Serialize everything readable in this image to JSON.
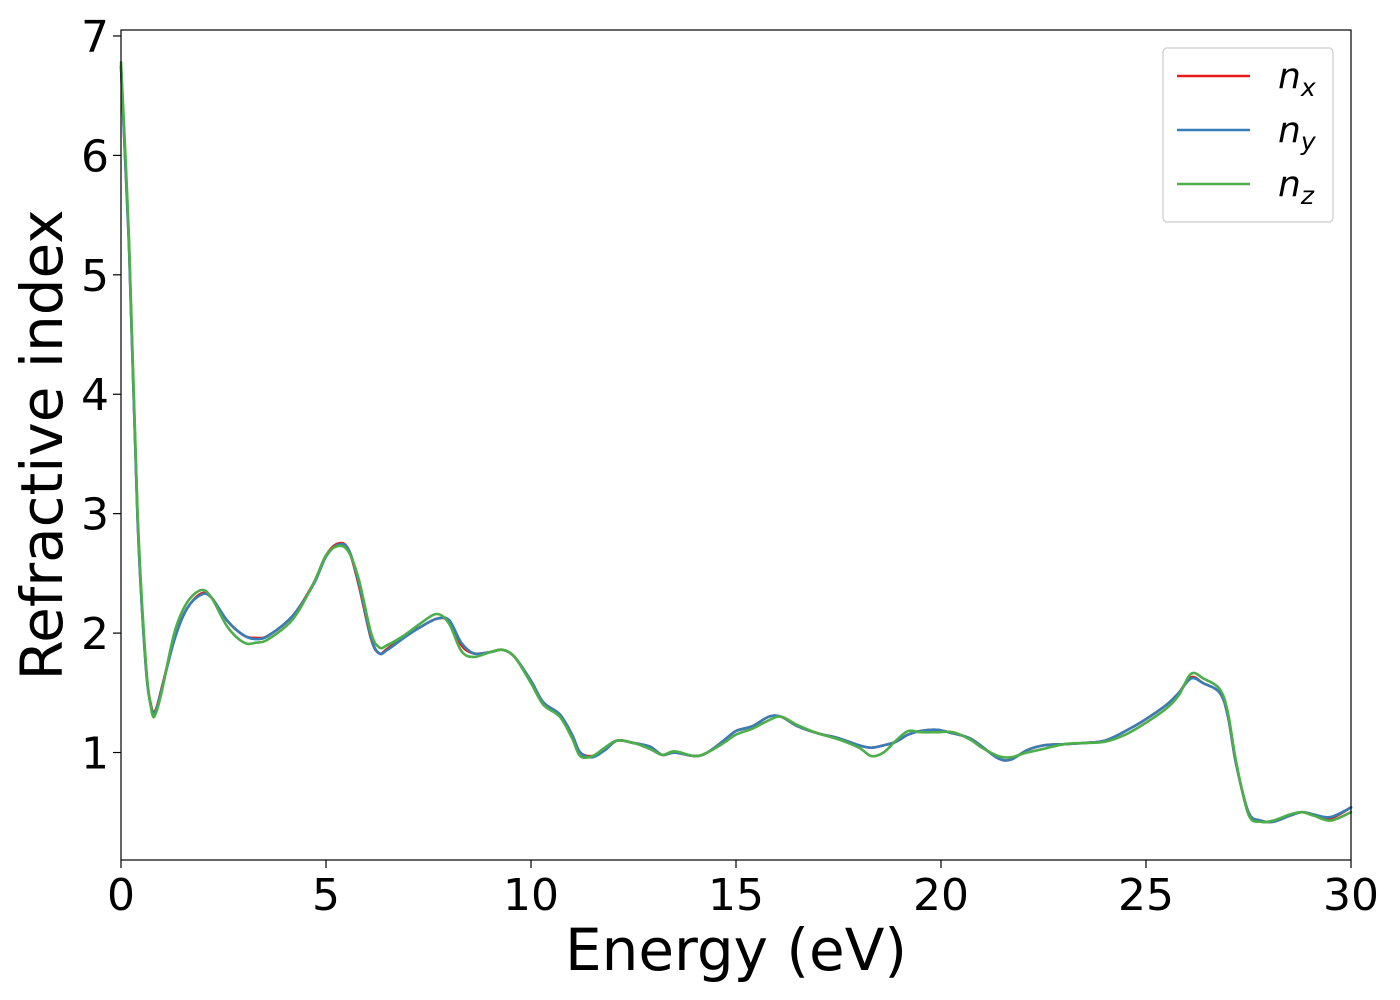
{
  "chart_data": {
    "type": "line",
    "title": "",
    "xlabel": "Energy (eV)",
    "ylabel": "Refractive index",
    "xlim": [
      0,
      30
    ],
    "ylim": [
      0.1,
      7.05
    ],
    "xticks": [
      0,
      5,
      10,
      15,
      20,
      25,
      30
    ],
    "yticks": [
      1,
      2,
      3,
      4,
      5,
      6,
      7
    ],
    "grid": false,
    "legend_position": "top-right",
    "series": [
      {
        "name": "n",
        "subscript": "x",
        "color": "#e41a1c",
        "x": [
          0,
          0.2,
          0.4,
          0.6,
          0.75,
          0.85,
          1.0,
          1.3,
          1.6,
          1.95,
          2.2,
          2.6,
          3.0,
          3.3,
          3.6,
          4.2,
          4.7,
          5.0,
          5.3,
          5.55,
          5.8,
          6.1,
          6.3,
          6.5,
          6.9,
          7.3,
          7.7,
          8.0,
          8.3,
          8.6,
          9.0,
          9.3,
          9.6,
          10.0,
          10.3,
          10.7,
          11.0,
          11.2,
          11.5,
          11.8,
          12.1,
          12.5,
          12.9,
          13.2,
          13.5,
          14.0,
          14.3,
          14.7,
          15.0,
          15.4,
          15.8,
          16.1,
          16.5,
          17.0,
          17.5,
          18.0,
          18.3,
          18.6,
          18.9,
          19.2,
          19.5,
          19.9,
          20.3,
          20.7,
          21.0,
          21.4,
          21.7,
          22.1,
          22.5,
          23.0,
          23.5,
          24.0,
          24.5,
          25.0,
          25.5,
          25.8,
          26.1,
          26.4,
          26.8,
          27.0,
          27.2,
          27.5,
          27.8,
          28.1,
          28.5,
          28.8,
          29.1,
          29.5,
          30.0
        ],
        "values": [
          6.75,
          5.2,
          3.0,
          1.75,
          1.37,
          1.36,
          1.55,
          1.95,
          2.2,
          2.33,
          2.3,
          2.1,
          1.98,
          1.96,
          1.98,
          2.15,
          2.42,
          2.65,
          2.75,
          2.7,
          2.4,
          1.95,
          1.83,
          1.87,
          1.97,
          2.05,
          2.12,
          2.1,
          1.9,
          1.83,
          1.84,
          1.86,
          1.8,
          1.6,
          1.42,
          1.32,
          1.15,
          1.0,
          0.97,
          1.02,
          1.1,
          1.08,
          1.05,
          0.98,
          1.0,
          0.97,
          1.0,
          1.1,
          1.18,
          1.22,
          1.3,
          1.3,
          1.22,
          1.16,
          1.12,
          1.06,
          1.04,
          1.06,
          1.09,
          1.15,
          1.18,
          1.19,
          1.16,
          1.12,
          1.05,
          0.95,
          0.94,
          1.02,
          1.06,
          1.07,
          1.08,
          1.1,
          1.18,
          1.28,
          1.4,
          1.5,
          1.63,
          1.58,
          1.5,
          1.3,
          0.9,
          0.5,
          0.43,
          0.42,
          0.47,
          0.5,
          0.48,
          0.45,
          0.54
        ]
      },
      {
        "name": "n",
        "subscript": "y",
        "color": "#377eb8",
        "x": [
          0,
          0.2,
          0.4,
          0.6,
          0.75,
          0.85,
          1.0,
          1.3,
          1.6,
          1.95,
          2.2,
          2.6,
          3.0,
          3.3,
          3.6,
          4.2,
          4.7,
          5.0,
          5.3,
          5.55,
          5.8,
          6.1,
          6.3,
          6.5,
          6.9,
          7.3,
          7.7,
          8.0,
          8.3,
          8.6,
          9.0,
          9.3,
          9.6,
          10.0,
          10.3,
          10.7,
          11.0,
          11.2,
          11.5,
          11.8,
          12.1,
          12.5,
          12.9,
          13.2,
          13.5,
          14.0,
          14.3,
          14.7,
          15.0,
          15.4,
          15.8,
          16.1,
          16.5,
          17.0,
          17.5,
          18.0,
          18.3,
          18.6,
          18.9,
          19.2,
          19.5,
          19.9,
          20.3,
          20.7,
          21.0,
          21.4,
          21.7,
          22.1,
          22.5,
          23.0,
          23.5,
          24.0,
          24.5,
          25.0,
          25.5,
          25.8,
          26.1,
          26.4,
          26.8,
          27.0,
          27.2,
          27.5,
          27.8,
          28.1,
          28.5,
          28.8,
          29.1,
          29.5,
          30.0
        ],
        "values": [
          6.74,
          5.18,
          2.98,
          1.74,
          1.36,
          1.35,
          1.54,
          1.94,
          2.2,
          2.32,
          2.3,
          2.1,
          1.98,
          1.95,
          1.98,
          2.15,
          2.41,
          2.64,
          2.74,
          2.7,
          2.42,
          1.96,
          1.83,
          1.86,
          1.96,
          2.05,
          2.12,
          2.11,
          1.92,
          1.83,
          1.84,
          1.86,
          1.8,
          1.6,
          1.42,
          1.32,
          1.15,
          1.0,
          0.96,
          1.02,
          1.1,
          1.08,
          1.05,
          0.98,
          1.0,
          0.97,
          1.0,
          1.1,
          1.18,
          1.22,
          1.3,
          1.3,
          1.22,
          1.16,
          1.12,
          1.06,
          1.04,
          1.06,
          1.09,
          1.15,
          1.18,
          1.19,
          1.16,
          1.12,
          1.05,
          0.95,
          0.94,
          1.02,
          1.06,
          1.07,
          1.08,
          1.1,
          1.18,
          1.28,
          1.4,
          1.5,
          1.62,
          1.58,
          1.5,
          1.3,
          0.9,
          0.5,
          0.43,
          0.42,
          0.47,
          0.5,
          0.48,
          0.46,
          0.54
        ]
      },
      {
        "name": "n",
        "subscript": "z",
        "color": "#4daf4a",
        "x": [
          0,
          0.2,
          0.4,
          0.6,
          0.75,
          0.85,
          1.0,
          1.3,
          1.6,
          1.95,
          2.2,
          2.6,
          3.0,
          3.3,
          3.6,
          4.2,
          4.7,
          5.0,
          5.3,
          5.55,
          5.8,
          6.1,
          6.3,
          6.5,
          6.9,
          7.3,
          7.7,
          8.0,
          8.3,
          8.6,
          9.0,
          9.3,
          9.6,
          10.0,
          10.3,
          10.7,
          11.0,
          11.2,
          11.5,
          11.8,
          12.1,
          12.5,
          12.9,
          13.2,
          13.5,
          14.0,
          14.3,
          14.7,
          15.0,
          15.4,
          15.8,
          16.1,
          16.5,
          17.0,
          17.5,
          18.0,
          18.3,
          18.6,
          18.9,
          19.2,
          19.5,
          19.9,
          20.3,
          20.7,
          21.0,
          21.4,
          21.7,
          22.1,
          22.5,
          23.0,
          23.5,
          24.0,
          24.5,
          25.0,
          25.5,
          25.8,
          26.1,
          26.4,
          26.8,
          27.0,
          27.2,
          27.5,
          27.8,
          28.1,
          28.5,
          28.8,
          29.1,
          29.5,
          30.0
        ],
        "values": [
          6.78,
          5.25,
          3.05,
          1.78,
          1.34,
          1.33,
          1.52,
          2.0,
          2.25,
          2.36,
          2.3,
          2.05,
          1.92,
          1.92,
          1.95,
          2.12,
          2.42,
          2.65,
          2.73,
          2.68,
          2.45,
          2.0,
          1.88,
          1.9,
          1.98,
          2.08,
          2.16,
          2.08,
          1.85,
          1.8,
          1.84,
          1.86,
          1.8,
          1.58,
          1.4,
          1.3,
          1.12,
          0.97,
          0.97,
          1.04,
          1.1,
          1.08,
          1.03,
          0.98,
          1.01,
          0.97,
          1.0,
          1.08,
          1.15,
          1.2,
          1.27,
          1.3,
          1.23,
          1.16,
          1.11,
          1.04,
          0.97,
          1.0,
          1.1,
          1.18,
          1.17,
          1.17,
          1.17,
          1.11,
          1.04,
          0.97,
          0.96,
          1.0,
          1.03,
          1.07,
          1.08,
          1.09,
          1.15,
          1.25,
          1.37,
          1.48,
          1.66,
          1.62,
          1.53,
          1.33,
          0.92,
          0.48,
          0.42,
          0.43,
          0.48,
          0.5,
          0.47,
          0.43,
          0.5
        ]
      }
    ]
  }
}
